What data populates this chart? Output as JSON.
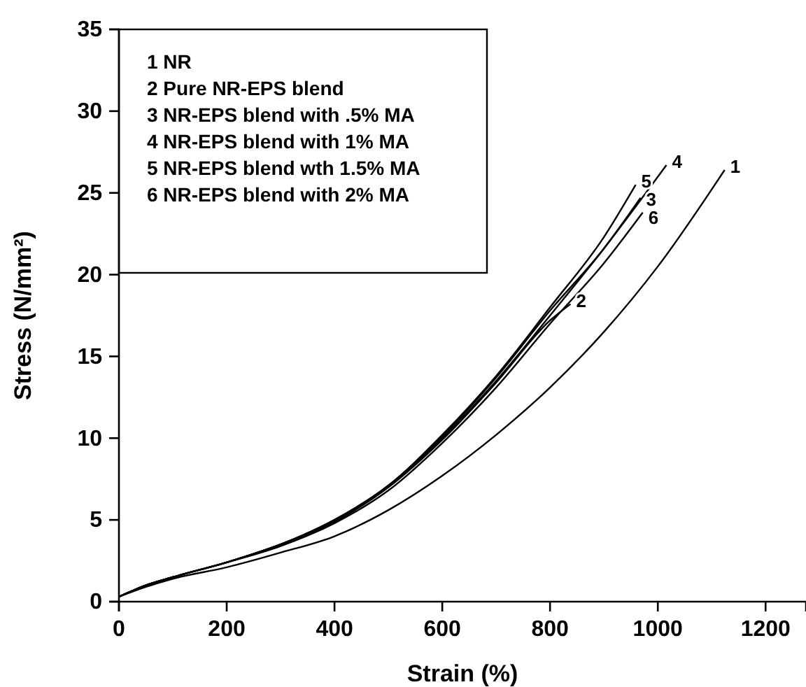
{
  "chart_data": {
    "type": "line",
    "xlabel": "Strain (%)",
    "ylabel": "Stress (N/mm²)",
    "xlim": [
      0,
      1275
    ],
    "ylim": [
      0,
      35
    ],
    "xticks": [
      0,
      200,
      400,
      600,
      800,
      1000,
      1200
    ],
    "yticks": [
      0,
      5,
      10,
      15,
      20,
      25,
      30,
      35
    ],
    "grid": false,
    "marker": "none",
    "line_style": "solid",
    "series": [
      {
        "name": "1",
        "color": "#000000",
        "x": [
          0,
          50,
          100,
          200,
          300,
          400,
          500,
          600,
          700,
          800,
          900,
          1000,
          1124
        ],
        "values": [
          0.3,
          0.9,
          1.4,
          2.1,
          3.0,
          4.0,
          5.6,
          7.7,
          10.2,
          13.1,
          16.5,
          20.5,
          26.4
        ]
      },
      {
        "name": "2",
        "color": "#000000",
        "x": [
          0,
          50,
          100,
          200,
          300,
          400,
          500,
          600,
          700,
          800,
          838
        ],
        "values": [
          0.3,
          1.0,
          1.5,
          2.4,
          3.5,
          4.9,
          7.0,
          9.9,
          13.4,
          17.2,
          18.2
        ]
      },
      {
        "name": "3",
        "color": "#000000",
        "x": [
          0,
          50,
          100,
          200,
          300,
          400,
          500,
          600,
          700,
          800,
          900,
          968
        ],
        "values": [
          0.3,
          1.0,
          1.5,
          2.4,
          3.5,
          5.0,
          7.1,
          10.1,
          13.7,
          17.8,
          21.6,
          24.7
        ]
      },
      {
        "name": "4",
        "color": "#000000",
        "x": [
          0,
          50,
          100,
          200,
          300,
          400,
          500,
          600,
          700,
          800,
          900,
          1016
        ],
        "values": [
          0.3,
          1.0,
          1.5,
          2.4,
          3.5,
          4.9,
          7.0,
          10.0,
          13.5,
          17.5,
          21.6,
          26.7
        ]
      },
      {
        "name": "5",
        "color": "#000000",
        "x": [
          0,
          50,
          100,
          200,
          300,
          400,
          500,
          600,
          700,
          800,
          900,
          959
        ],
        "values": [
          0.3,
          1.0,
          1.5,
          2.4,
          3.5,
          5.0,
          7.1,
          10.2,
          13.8,
          18.0,
          22.3,
          25.5
        ]
      },
      {
        "name": "6",
        "color": "#000000",
        "x": [
          0,
          50,
          100,
          200,
          300,
          400,
          500,
          600,
          700,
          800,
          900,
          972
        ],
        "values": [
          0.3,
          1.0,
          1.5,
          2.4,
          3.4,
          4.8,
          6.8,
          9.7,
          13.1,
          17.0,
          20.7,
          23.8
        ]
      }
    ],
    "annotations": [
      "1 NR",
      "2 Pure NR-EPS blend",
      "3 NR-EPS blend with .5% MA",
      "4 NR-EPS blend with 1% MA",
      "5 NR-EPS blend wth 1.5% MA",
      "6 NR-EPS blend with 2% MA"
    ]
  }
}
